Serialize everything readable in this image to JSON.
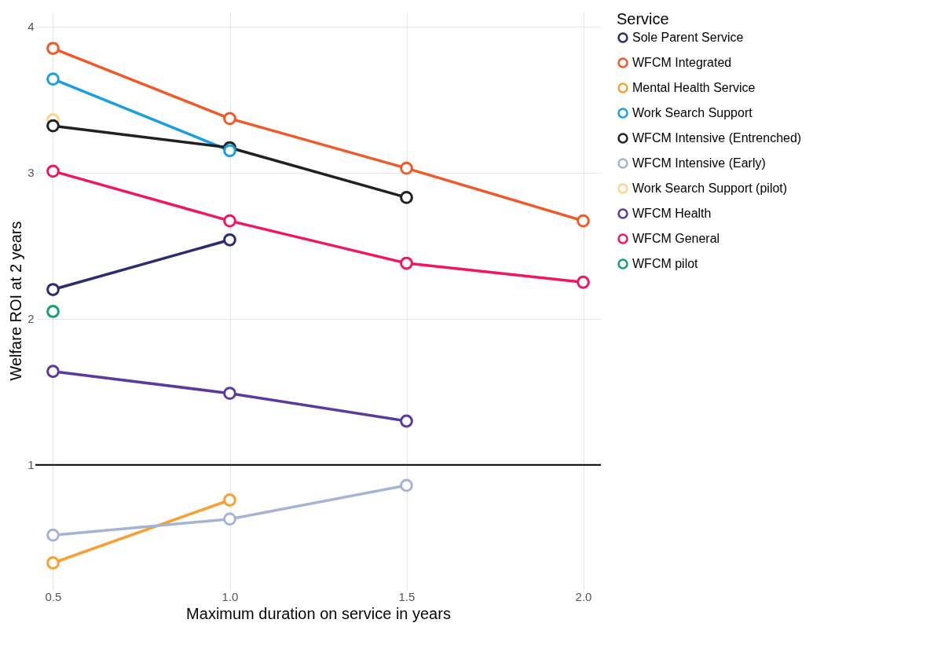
{
  "chart_data": {
    "type": "line",
    "xlabel": "Maximum duration on service in years",
    "ylabel": "Welfare ROI at 2 years",
    "legend_title": "Service",
    "legend": "right",
    "grid": true,
    "marker": "circle",
    "line_style": "solid",
    "xlim": [
      0.45,
      2.05
    ],
    "xticks": [
      {
        "value": 0.5,
        "label": "0.5"
      },
      {
        "value": 1,
        "label": "1.0"
      },
      {
        "value": 1.5,
        "label": "1.5"
      },
      {
        "value": 2,
        "label": "2.0"
      }
    ],
    "ylim": [
      0.15,
      4.1
    ],
    "yticks": [
      1,
      2,
      3,
      4
    ],
    "ref_lines": [
      {
        "axis": "y",
        "value": 1,
        "label": null,
        "color": "#000000"
      }
    ],
    "series": [
      {
        "name": "Sole Parent Service",
        "color": "#2b2d6e",
        "x": [
          0.5,
          1
        ],
        "values": [
          2.2,
          2.54
        ]
      },
      {
        "name": "WFCM Integrated",
        "color": "#f05a28",
        "x": [
          0.5,
          1,
          1.5,
          2
        ],
        "values": [
          3.85,
          3.37,
          3.03,
          2.67
        ]
      },
      {
        "name": "Mental Health Service",
        "color": "#f7a035",
        "x": [
          0.5,
          1
        ],
        "values": [
          0.33,
          0.76
        ]
      },
      {
        "name": "Work Search Support",
        "color": "#1a9ee0",
        "x": [
          0.5,
          1
        ],
        "values": [
          3.64,
          3.15
        ]
      },
      {
        "name": "WFCM Intensive (Entrenched)",
        "color": "#1f2223",
        "x": [
          0.5,
          1,
          1.5
        ],
        "values": [
          3.32,
          3.17,
          2.83
        ]
      },
      {
        "name": "WFCM Intensive (Early)",
        "color": "#a6b4d4",
        "x": [
          0.5,
          1,
          1.5
        ],
        "values": [
          0.52,
          0.63,
          0.86
        ]
      },
      {
        "name": "Work Search Support (pilot)",
        "color": "#fcd38a",
        "x": [
          0.5
        ],
        "values": [
          3.36
        ]
      },
      {
        "name": "WFCM Health",
        "color": "#5a3a9e",
        "x": [
          0.5,
          1,
          1.5
        ],
        "values": [
          1.64,
          1.49,
          1.3
        ]
      },
      {
        "name": "WFCM General",
        "color": "#f0175f",
        "x": [
          0.5,
          1,
          1.5,
          2
        ],
        "values": [
          3.01,
          2.67,
          2.38,
          2.25
        ]
      },
      {
        "name": "WFCM pilot",
        "color": "#1a9e6a",
        "x": [
          0.5
        ],
        "values": [
          2.05
        ]
      }
    ]
  }
}
